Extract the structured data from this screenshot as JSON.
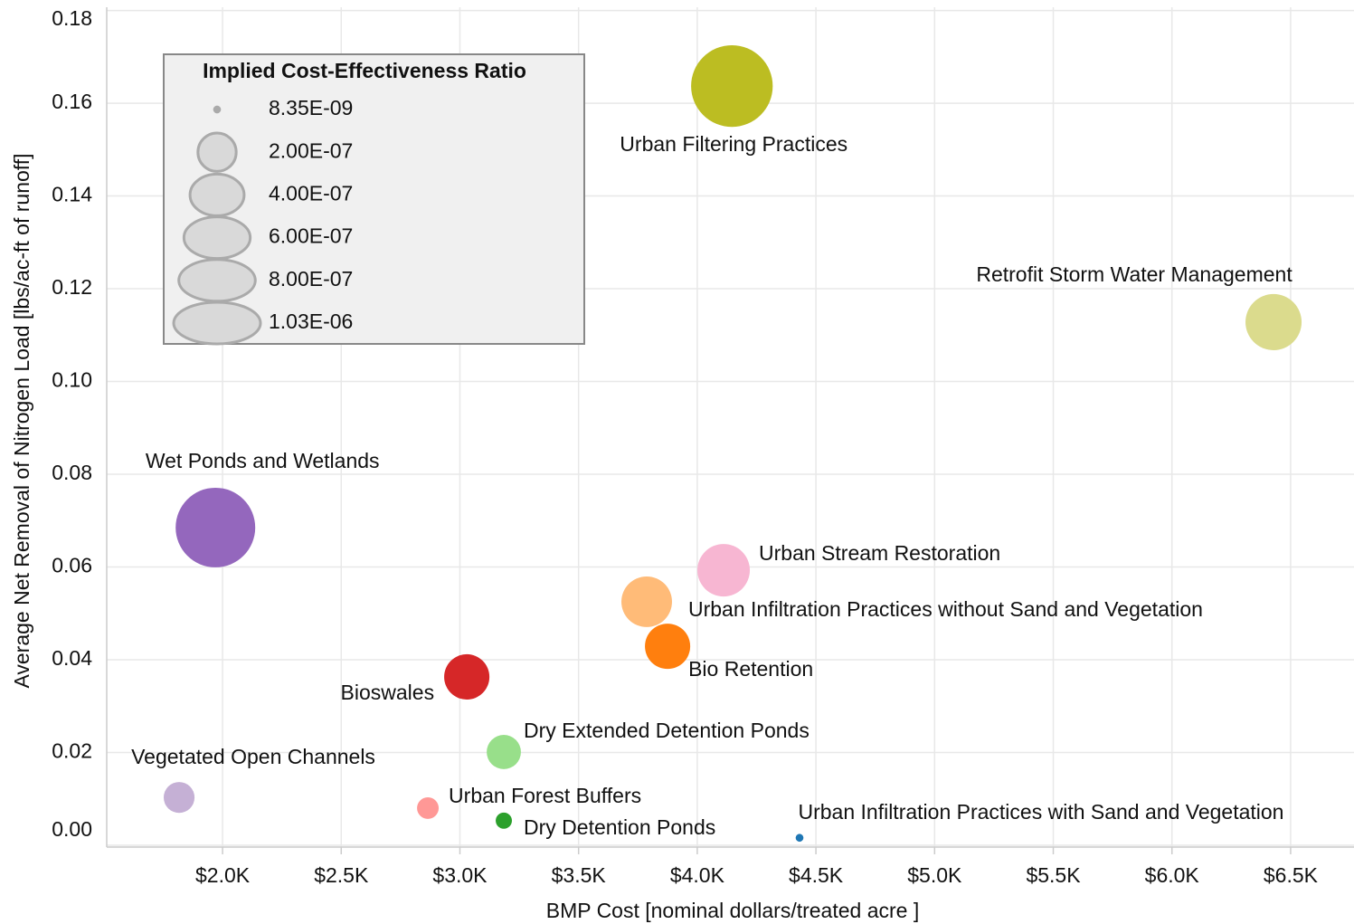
{
  "chart_data": {
    "type": "bubble",
    "x_label": "BMP Cost [nominal dollars/treated acre ]",
    "y_label": "Average Net Removal of Nitrogen Load [lbs/ac-ft of runoff]",
    "xlim": [
      1512,
      6767
    ],
    "ylim": [
      -0.0004,
      0.1807
    ],
    "xticks": [
      {
        "value": 2000,
        "label": "$2.0K"
      },
      {
        "value": 2500,
        "label": "$2.5K"
      },
      {
        "value": 3000,
        "label": "$3.0K"
      },
      {
        "value": 3500,
        "label": "$3.5K"
      },
      {
        "value": 4000,
        "label": "$4.0K"
      },
      {
        "value": 4500,
        "label": "$4.5K"
      },
      {
        "value": 5000,
        "label": "$5.0K"
      },
      {
        "value": 5500,
        "label": "$5.5K"
      },
      {
        "value": 6000,
        "label": "$6.0K"
      },
      {
        "value": 6500,
        "label": "$6.5K"
      }
    ],
    "yticks": [
      {
        "value": 0,
        "label": "0.00"
      },
      0.02,
      0.04,
      0.06,
      0.08,
      {
        "value": 0.1,
        "label": "0.10"
      },
      0.12,
      0.14,
      0.16,
      0.18
    ],
    "grid": true,
    "size_legend": {
      "title": "Implied Cost-Effectiveness Ratio",
      "color": "#d9d9d9",
      "values": [
        8.35e-09,
        2e-07,
        4e-07,
        6e-07,
        8e-07,
        1.03e-06
      ],
      "value_labels": [
        "8.35E-09",
        "2.00E-07",
        "4.00E-07",
        "6.00E-07",
        "8.00E-07",
        "1.03E-06"
      ]
    },
    "points": [
      {
        "name": "Urban Filtering Practices",
        "x": 4146,
        "y": 0.1637,
        "size": 9.1e-07,
        "color": "#bcbd22"
      },
      {
        "name": "Retrofit Storm Water Management",
        "x": 6428,
        "y": 0.1128,
        "size": 4.3e-07,
        "color": "#dbdb8d"
      },
      {
        "name": "Wet Ponds and Wetlands",
        "x": 1970,
        "y": 0.0685,
        "size": 8.65e-07,
        "color": "#9467bd"
      },
      {
        "name": "Urban Stream Restoration",
        "x": 4111,
        "y": 0.0593,
        "size": 3.76e-07,
        "color": "#f7b6d2"
      },
      {
        "name": "Urban Infiltration Practices without Sand and Vegetation",
        "x": 3787,
        "y": 0.0525,
        "size": 3.5e-07,
        "color": "#ffbb78"
      },
      {
        "name": "Bio Retention",
        "x": 3875,
        "y": 0.0429,
        "size": 2.8e-07,
        "color": "#ff7f0e"
      },
      {
        "name": "Bioswales",
        "x": 3029,
        "y": 0.0363,
        "size": 2.8e-07,
        "color": "#d62728"
      },
      {
        "name": "Dry Extended Detention Ponds",
        "x": 3185,
        "y": 0.0201,
        "size": 1.6e-07,
        "color": "#98df8a"
      },
      {
        "name": "Vegetated Open Channels",
        "x": 1817,
        "y": 0.0103,
        "size": 1.3e-07,
        "color": "#c5b0d5"
      },
      {
        "name": "Urban Forest Buffers",
        "x": 2865,
        "y": 0.008,
        "size": 6.4e-08,
        "color": "#ff9896"
      },
      {
        "name": "Dry Detention Ponds",
        "x": 3185,
        "y": 0.0053,
        "size": 3.6e-08,
        "color": "#2ca02c"
      },
      {
        "name": "Urban Infiltration Practices with Sand and Vegetation",
        "x": 4431,
        "y": 0.0016,
        "size": 8.35e-09,
        "color": "#1f77b4"
      }
    ]
  }
}
